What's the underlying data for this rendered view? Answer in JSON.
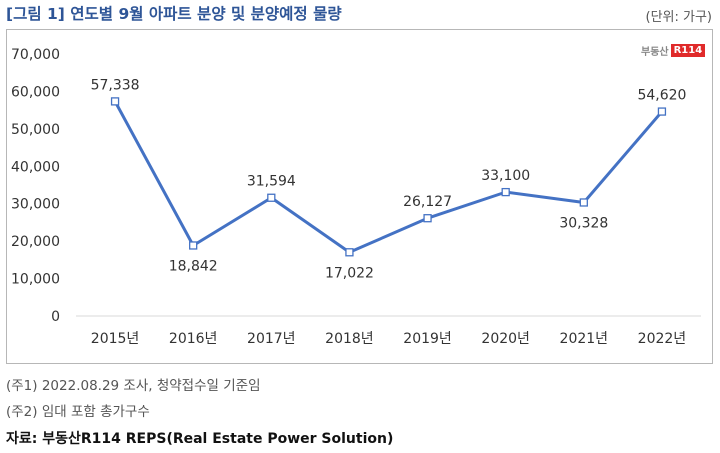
{
  "header": {
    "title": "[그림 1] 연도별 9월 아파트 분양 및 분양예정 물량",
    "unit": "(단위: 가구)"
  },
  "logo": {
    "text": "부동산",
    "mark": "R114"
  },
  "notes": [
    "(주1) 2022.08.29 조사, 청약접수일 기준임",
    "(주2) 임대 포함 총가구수"
  ],
  "source": "자료: 부동산R114 REPS(Real Estate Power Solution)",
  "colors": {
    "line": "#4472c4",
    "title": "#2e5597",
    "axis": "#d9d9d9"
  },
  "chart_data": {
    "type": "line",
    "categories": [
      "2015년",
      "2016년",
      "2017년",
      "2018년",
      "2019년",
      "2020년",
      "2021년",
      "2022년"
    ],
    "series": [
      {
        "values": [
          57338,
          18842,
          31594,
          17022,
          26127,
          33100,
          30328,
          54620
        ]
      }
    ],
    "data_labels": [
      "57,338",
      "18,842",
      "31,594",
      "17,022",
      "26,127",
      "33,100",
      "30,328",
      "54,620"
    ],
    "yticks": [
      "0",
      "10,000",
      "20,000",
      "30,000",
      "40,000",
      "50,000",
      "60,000",
      "70,000"
    ],
    "ylim": [
      0,
      70000
    ],
    "grid": false,
    "legend": "none"
  }
}
